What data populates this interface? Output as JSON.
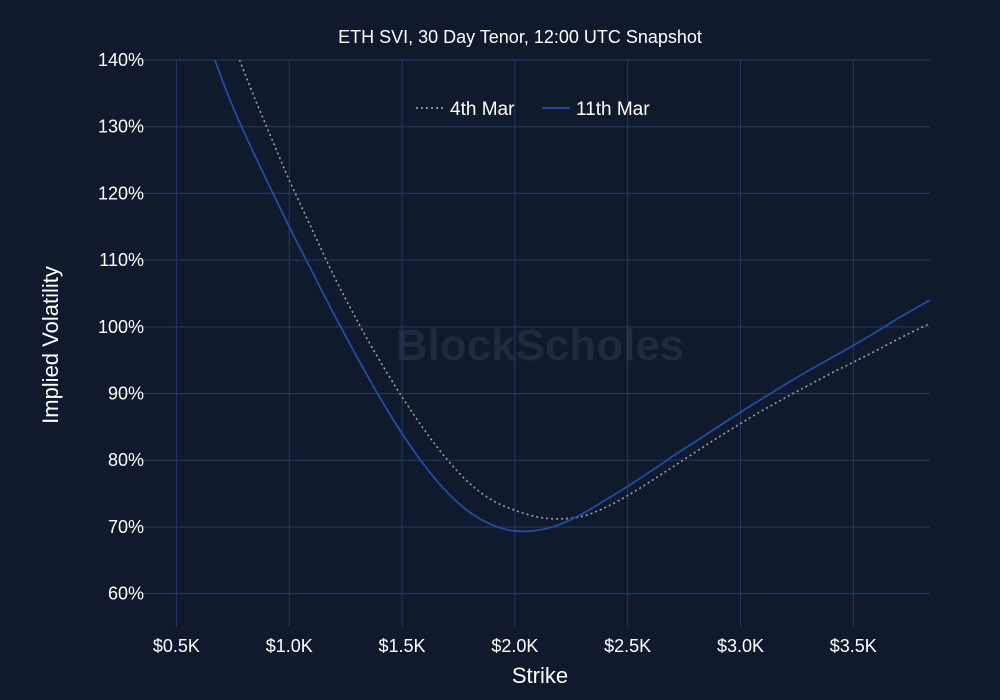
{
  "chart_data": {
    "type": "line",
    "title": "ETH SVI, 30 Day Tenor, 12:00 UTC Snapshot",
    "xlabel": "Strike",
    "ylabel": "Implied Volatility",
    "watermark": "BlockScholes",
    "xlim": [
      250,
      3840
    ],
    "ylim": [
      55,
      140
    ],
    "x_ticks": [
      500,
      1000,
      1500,
      2000,
      2500,
      3000,
      3500
    ],
    "x_tick_labels": [
      "$0.5K",
      "$1.0K",
      "$1.5K",
      "$2.0K",
      "$2.5K",
      "$3.0K",
      "$3.5K"
    ],
    "y_ticks": [
      60,
      70,
      80,
      90,
      100,
      110,
      120,
      130,
      140
    ],
    "y_tick_labels": [
      "60%",
      "70%",
      "80%",
      "90%",
      "100%",
      "110%",
      "120%",
      "130%",
      "140%"
    ],
    "grid": true,
    "legend_position": "top-center",
    "series": [
      {
        "name": "4th Mar",
        "color": "#9aa0aa",
        "style": "dotted",
        "points": [
          [
            780,
            140
          ],
          [
            850,
            134
          ],
          [
            950,
            126
          ],
          [
            1000,
            122
          ],
          [
            1100,
            114.7
          ],
          [
            1200,
            107.5
          ],
          [
            1300,
            101
          ],
          [
            1400,
            95
          ],
          [
            1500,
            89.5
          ],
          [
            1600,
            84.5
          ],
          [
            1700,
            80.1
          ],
          [
            1800,
            76.5
          ],
          [
            1900,
            74
          ],
          [
            2000,
            72.5
          ],
          [
            2100,
            71.5
          ],
          [
            2200,
            71.2
          ],
          [
            2300,
            71.6
          ],
          [
            2400,
            72.9
          ],
          [
            2500,
            74.7
          ],
          [
            2600,
            76.8
          ],
          [
            2700,
            79
          ],
          [
            2800,
            81.2
          ],
          [
            2900,
            83.4
          ],
          [
            3000,
            85.5
          ],
          [
            3100,
            87.5
          ],
          [
            3200,
            89.4
          ],
          [
            3300,
            91.2
          ],
          [
            3400,
            93
          ],
          [
            3500,
            94.7
          ],
          [
            3600,
            96.4
          ],
          [
            3700,
            98.2
          ],
          [
            3840,
            100.5
          ]
        ]
      },
      {
        "name": "11th Mar",
        "color": "#1f4fae",
        "style": "solid",
        "points": [
          [
            670,
            140
          ],
          [
            750,
            133
          ],
          [
            850,
            125.5
          ],
          [
            1000,
            115
          ],
          [
            1100,
            108.4
          ],
          [
            1200,
            101.8
          ],
          [
            1300,
            95.5
          ],
          [
            1400,
            89.5
          ],
          [
            1500,
            84
          ],
          [
            1600,
            79.2
          ],
          [
            1700,
            75.2
          ],
          [
            1800,
            72.2
          ],
          [
            1900,
            70.3
          ],
          [
            2000,
            69.4
          ],
          [
            2100,
            69.5
          ],
          [
            2200,
            70.4
          ],
          [
            2300,
            72
          ],
          [
            2400,
            74
          ],
          [
            2500,
            76.1
          ],
          [
            2600,
            78.3
          ],
          [
            2700,
            80.6
          ],
          [
            2800,
            82.8
          ],
          [
            2900,
            85
          ],
          [
            3000,
            87.2
          ],
          [
            3100,
            89.3
          ],
          [
            3200,
            91.4
          ],
          [
            3300,
            93.4
          ],
          [
            3400,
            95.3
          ],
          [
            3500,
            97.2
          ],
          [
            3600,
            99.2
          ],
          [
            3700,
            101.3
          ],
          [
            3840,
            104
          ]
        ]
      }
    ]
  }
}
